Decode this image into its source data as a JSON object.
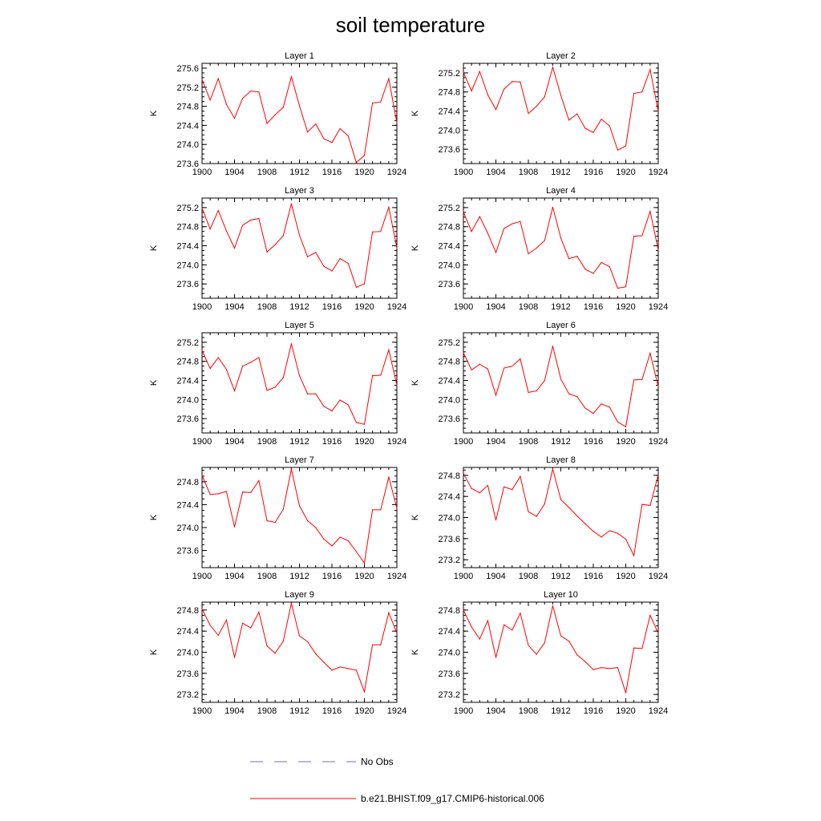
{
  "figure_title": "soil temperature",
  "chart_data": {
    "type": "line",
    "title": "soil temperature",
    "x": [
      1900,
      1901,
      1902,
      1903,
      1904,
      1905,
      1906,
      1907,
      1908,
      1909,
      1910,
      1911,
      1912,
      1913,
      1914,
      1915,
      1916,
      1917,
      1918,
      1919,
      1920,
      1921,
      1922,
      1923,
      1924
    ],
    "xticks": [
      1900,
      1904,
      1908,
      1912,
      1916,
      1920,
      1924
    ],
    "xlim": [
      1900,
      1924
    ],
    "ylabel": "K",
    "series_names": [
      "No Obs",
      "b.e21.BHIST.f09_g17.CMIP6-historical.006"
    ],
    "line_color": "#ff0000",
    "panels": [
      {
        "name": "Layer 1",
        "ylim": [
          273.6,
          275.7
        ],
        "yticks": [
          "273.6",
          "274.0",
          "274.4",
          "274.8",
          "275.2",
          "275.6"
        ],
        "values": [
          275.36,
          274.93,
          275.38,
          274.84,
          274.55,
          274.97,
          275.12,
          275.1,
          274.44,
          274.62,
          274.78,
          275.42,
          274.81,
          274.26,
          274.43,
          274.12,
          274.04,
          274.33,
          274.18,
          273.62,
          273.77,
          274.87,
          274.89,
          275.38,
          274.45
        ]
      },
      {
        "name": "Layer 2",
        "ylim": [
          273.3,
          275.4
        ],
        "yticks": [
          "273.6",
          "274.0",
          "274.4",
          "274.8",
          "275.2"
        ],
        "values": [
          275.21,
          274.82,
          275.23,
          274.74,
          274.43,
          274.86,
          275.02,
          275.01,
          274.35,
          274.5,
          274.7,
          275.32,
          274.73,
          274.21,
          274.34,
          274.04,
          273.95,
          274.23,
          274.09,
          273.58,
          273.67,
          274.77,
          274.8,
          275.27,
          274.39
        ]
      },
      {
        "name": "Layer 3",
        "ylim": [
          273.3,
          275.4
        ],
        "yticks": [
          "273.6",
          "274.0",
          "274.4",
          "274.8",
          "275.2"
        ],
        "values": [
          275.19,
          274.75,
          275.14,
          274.71,
          274.35,
          274.83,
          274.94,
          274.97,
          274.27,
          274.42,
          274.61,
          275.28,
          274.62,
          274.17,
          274.26,
          273.97,
          273.87,
          274.13,
          274.03,
          273.53,
          273.6,
          274.69,
          274.7,
          275.21,
          274.35
        ]
      },
      {
        "name": "Layer 4",
        "ylim": [
          273.3,
          275.4
        ],
        "yticks": [
          "273.6",
          "274.0",
          "274.4",
          "274.8",
          "275.2"
        ],
        "values": [
          275.11,
          274.7,
          275.01,
          274.66,
          274.26,
          274.76,
          274.86,
          274.91,
          274.23,
          274.35,
          274.51,
          275.21,
          274.56,
          274.13,
          274.18,
          273.91,
          273.82,
          274.05,
          273.96,
          273.51,
          273.54,
          274.6,
          274.61,
          275.12,
          274.31
        ]
      },
      {
        "name": "Layer 5",
        "ylim": [
          273.3,
          275.4
        ],
        "yticks": [
          "273.6",
          "274.0",
          "274.4",
          "274.8",
          "275.2"
        ],
        "values": [
          275.03,
          274.65,
          274.88,
          274.63,
          274.18,
          274.7,
          274.78,
          274.88,
          274.19,
          274.26,
          274.46,
          275.17,
          274.5,
          274.12,
          274.12,
          273.86,
          273.76,
          273.99,
          273.89,
          273.52,
          273.48,
          274.5,
          274.51,
          275.04,
          274.3
        ]
      },
      {
        "name": "Layer 6",
        "ylim": [
          273.3,
          275.4
        ],
        "yticks": [
          "273.6",
          "274.0",
          "274.4",
          "274.8",
          "275.2"
        ],
        "values": [
          274.98,
          274.62,
          274.74,
          274.64,
          274.09,
          274.66,
          274.7,
          274.85,
          274.15,
          274.18,
          274.4,
          275.12,
          274.43,
          274.12,
          274.06,
          273.82,
          273.71,
          273.91,
          273.84,
          273.53,
          273.43,
          274.41,
          274.42,
          274.97,
          274.27
        ]
      },
      {
        "name": "Layer 7",
        "ylim": [
          273.3,
          275.05
        ],
        "yticks": [
          "273.6",
          "274.0",
          "274.4",
          "274.8"
        ],
        "values": [
          274.91,
          274.58,
          274.59,
          274.63,
          274.01,
          274.62,
          274.61,
          274.82,
          274.12,
          274.09,
          274.32,
          275.02,
          274.38,
          274.12,
          274.0,
          273.8,
          273.68,
          273.83,
          273.77,
          273.58,
          273.38,
          274.31,
          274.31,
          274.88,
          274.34
        ]
      },
      {
        "name": "Layer 8",
        "ylim": [
          273.05,
          274.95
        ],
        "yticks": [
          "273.2",
          "273.6",
          "274.0",
          "274.4",
          "274.8"
        ],
        "values": [
          274.84,
          274.55,
          274.47,
          274.61,
          273.95,
          274.58,
          274.53,
          274.78,
          274.11,
          274.02,
          274.26,
          274.92,
          274.34,
          274.19,
          274.03,
          273.88,
          273.74,
          273.63,
          273.75,
          273.7,
          273.59,
          273.28,
          274.25,
          274.23,
          274.81
        ]
      },
      {
        "name": "Layer 9",
        "ylim": [
          273.05,
          274.95
        ],
        "yticks": [
          "273.2",
          "273.6",
          "274.0",
          "274.4",
          "274.8"
        ],
        "values": [
          274.82,
          274.51,
          274.32,
          274.61,
          273.9,
          274.55,
          274.46,
          274.76,
          274.12,
          273.98,
          274.21,
          274.93,
          274.31,
          274.2,
          273.97,
          273.81,
          273.66,
          273.72,
          273.69,
          273.66,
          273.25,
          274.14,
          274.14,
          274.75,
          274.36
        ]
      },
      {
        "name": "Layer 10",
        "ylim": [
          273.05,
          274.95
        ],
        "yticks": [
          "273.2",
          "273.6",
          "274.0",
          "274.4",
          "274.8"
        ],
        "values": [
          274.8,
          274.48,
          274.25,
          274.6,
          273.9,
          274.52,
          274.42,
          274.74,
          274.13,
          273.96,
          274.18,
          274.88,
          274.31,
          274.21,
          273.95,
          273.82,
          273.67,
          273.71,
          273.69,
          273.71,
          273.23,
          274.08,
          274.07,
          274.7,
          274.36
        ]
      }
    ]
  },
  "legend": {
    "no_obs_label": "No Obs",
    "model_label": "b.e21.BHIST.f09_g17.CMIP6-historical.006",
    "no_obs_color": "#6e6ec8",
    "model_color": "#ff0000"
  }
}
